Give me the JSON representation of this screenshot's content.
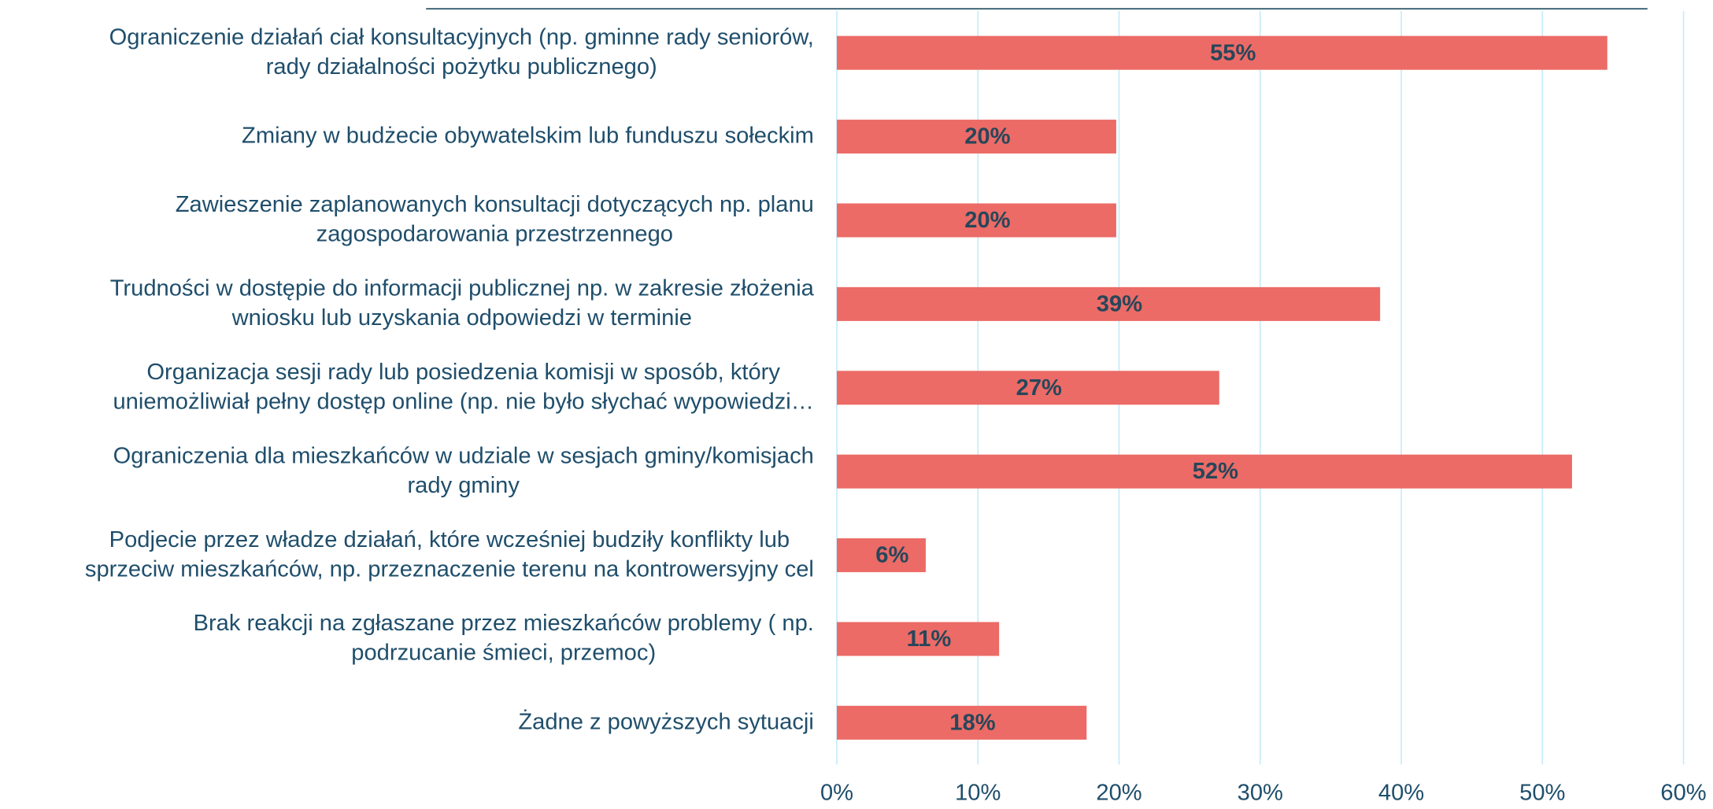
{
  "chart_data": {
    "type": "barh",
    "categories": [
      "Ograniczenie działań ciał konsultacyjnych (np. gminne rady seniorów,\nrady działalności pożytku publicznego)",
      "Zmiany w budżecie obywatelskim lub funduszu sołeckim",
      "Zawieszenie zaplanowanych konsultacji dotyczących np. planu\nzagospodarowania przestrzennego",
      "Trudności w dostępie do informacji publicznej np. w zakresie złożenia\nwniosku lub uzyskania odpowiedzi w terminie",
      "Organizacja sesji rady lub posiedzenia komisji w sposób, który\nuniemożliwiał pełny dostęp online (np. nie było słychać wypowiedzi…",
      "Ograniczenia dla mieszkańców w udziale w sesjach gminy/komisjach\nrady gminy",
      "Podjecie przez władze działań, które wcześniej budziły konflikty lub\nsprzeciw mieszkańców, np. przeznaczenie terenu na kontrowersyjny cel",
      "Brak reakcji na zgłaszane przez mieszkańców problemy ( np.\npodrzucanie śmieci, przemoc)",
      "Żadne z powyższych sytuacji"
    ],
    "values": [
      54.6,
      19.8,
      19.8,
      38.5,
      27.1,
      52.1,
      6.3,
      11.5,
      17.7
    ],
    "value_labels": [
      "55%",
      "20%",
      "20%",
      "39%",
      "27%",
      "52%",
      "6%",
      "11%",
      "18%"
    ],
    "color": "#ec6b66",
    "xlim": [
      0,
      60
    ],
    "xticks": [
      {
        "value": 0,
        "label": "0%"
      },
      {
        "value": 10,
        "label": "10%"
      },
      {
        "value": 20,
        "label": "20%"
      },
      {
        "value": 30,
        "label": "30%"
      },
      {
        "value": 40,
        "label": "40%"
      },
      {
        "value": 50,
        "label": "50%"
      },
      {
        "value": 60,
        "label": "60%"
      }
    ],
    "grid": true
  }
}
